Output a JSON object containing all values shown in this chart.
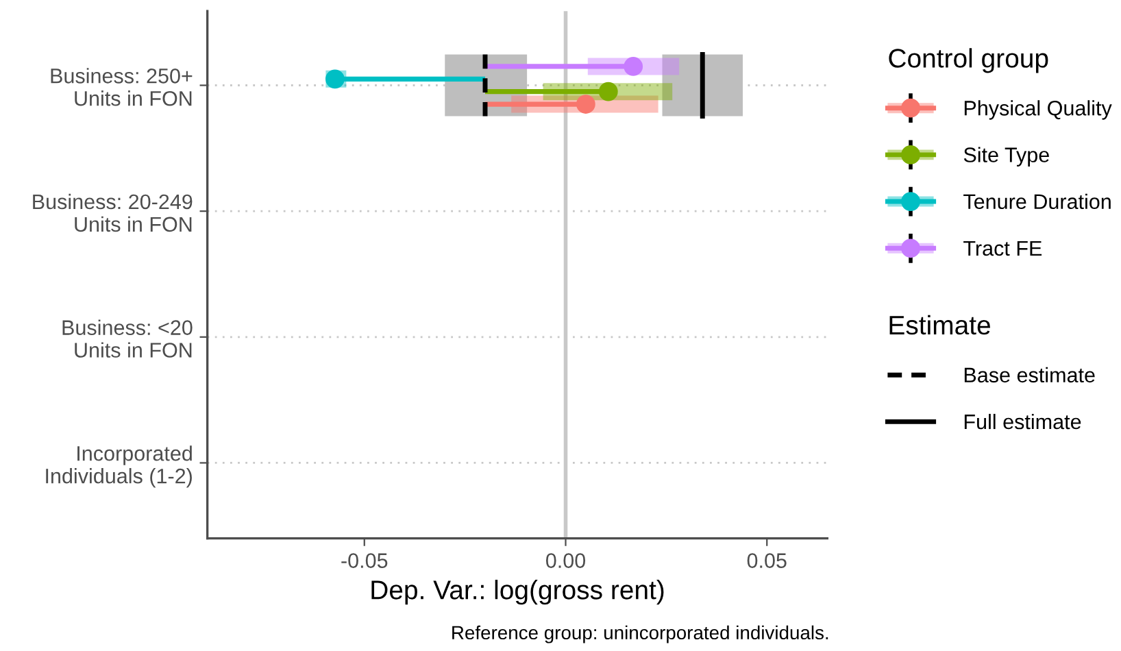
{
  "chart_data": {
    "type": "scatter",
    "orientation": "horizontal",
    "categories": [
      "Business: 250+\nUnits in FON",
      "Business: 20-249\nUnits in FON",
      "Business: <20\nUnits in FON",
      "Incorporated\nIndividuals (1-2)"
    ],
    "xlabel": "Dep. Var.: log(gross rent)",
    "legend_title": "Control group",
    "legend": "right",
    "grid": "y",
    "marker": "circle",
    "xlim": [
      -0.089,
      0.065
    ],
    "xticks": [
      {
        "value": -0.05,
        "label": "-0.05"
      },
      {
        "value": 0,
        "label": "0.00"
      },
      {
        "value": 0.05,
        "label": "0.05"
      }
    ],
    "ref_lines": [
      {
        "axis": "x",
        "value": -0.02,
        "label": "Base estimate",
        "color": "#000000",
        "line_style": "dashed"
      },
      {
        "axis": "x",
        "value": 0.034,
        "label": "Full estimate",
        "color": "#000000",
        "line_style": "solid"
      },
      {
        "axis": "x",
        "value": 0,
        "color": "#c8c8c8",
        "line_style": "solid"
      }
    ],
    "bands": [
      {
        "axis": "x",
        "from": -0.03,
        "to": -0.0096,
        "color": "#bebebe"
      },
      {
        "axis": "x",
        "from": 0.024,
        "to": 0.044,
        "color": "#bebebe"
      }
    ],
    "annotations": [
      "Estimate",
      "Reference group: unincorporated individuals."
    ],
    "series": [
      {
        "name": "Physical Quality",
        "color": "#f8766d",
        "values": [
          0.005,
          null,
          null,
          null
        ],
        "errors": [
          [
            -0.0135,
            0.023
          ],
          null,
          null,
          null
        ]
      },
      {
        "name": "Site Type",
        "color": "#7cae00",
        "values": [
          0.0106,
          null,
          null,
          null
        ],
        "errors": [
          [
            -0.0056,
            0.0265
          ],
          null,
          null,
          null
        ]
      },
      {
        "name": "Tenure Duration",
        "color": "#00bfc4",
        "values": [
          -0.0573,
          null,
          null,
          null
        ],
        "errors": [
          [
            -0.0596,
            -0.0545
          ],
          null,
          null,
          null
        ]
      },
      {
        "name": "Tract FE",
        "color": "#c77cff",
        "values": [
          0.0168,
          null,
          null,
          null
        ],
        "errors": [
          [
            0.0055,
            0.0282
          ],
          null,
          null,
          null
        ]
      }
    ]
  }
}
